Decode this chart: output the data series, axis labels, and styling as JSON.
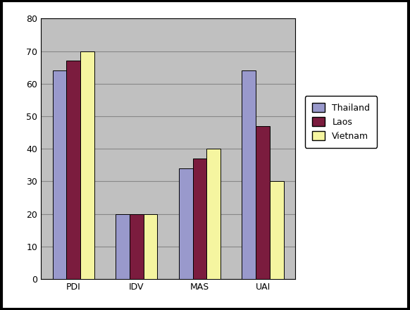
{
  "categories": [
    "PDI",
    "IDV",
    "MAS",
    "UAI"
  ],
  "thailand": [
    64,
    20,
    34,
    64
  ],
  "laos": [
    67,
    20,
    37,
    47
  ],
  "vietnam": [
    70,
    20,
    40,
    30
  ],
  "thailand_color": "#9999cc",
  "laos_color": "#7b1c3e",
  "vietnam_color": "#f5f5a0",
  "bar_edge_color": "#000000",
  "ylim": [
    0,
    80
  ],
  "yticks": [
    0,
    10,
    20,
    30,
    40,
    50,
    60,
    70,
    80
  ],
  "legend_labels": [
    "Thailand",
    "Laos",
    "Vietnam"
  ],
  "plot_bg_color": "#c0c0c0",
  "fig_bg_color": "#ffffff",
  "grid_color": "#a0a0a0",
  "bar_width": 0.22,
  "tick_fontsize": 9,
  "legend_fontsize": 9
}
